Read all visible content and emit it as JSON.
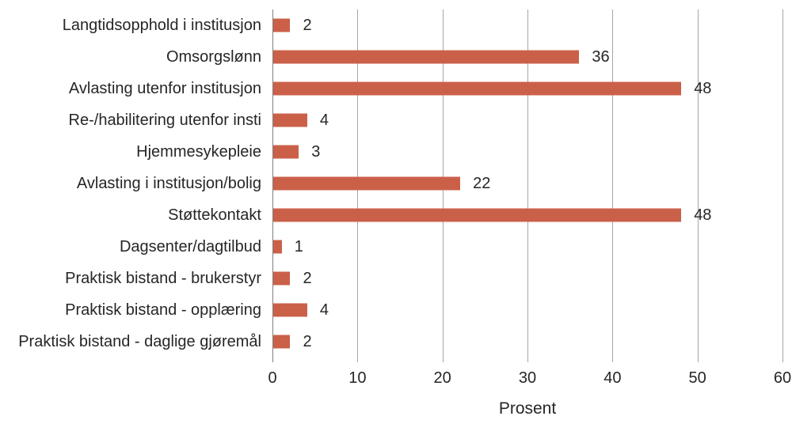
{
  "chart_data": {
    "type": "bar",
    "orientation": "horizontal",
    "title": "",
    "xlabel": "Prosent",
    "ylabel": "",
    "categories": [
      "Langtidsopphold i institusjon",
      "Omsorgslønn",
      "Avlasting utenfor institusjon",
      "Re-/habilitering utenfor insti",
      "Hjemmesykepleie",
      "Avlasting i institusjon/bolig",
      "Støttekontakt",
      "Dagsenter/dagtilbud",
      "Praktisk bistand - brukerstyr",
      "Praktisk bistand - opplæring",
      "Praktisk bistand - daglige gjøremål"
    ],
    "values": [
      2,
      36,
      48,
      4,
      3,
      22,
      48,
      1,
      2,
      4,
      2
    ],
    "data_labels_shown": true,
    "xlim": [
      0,
      60
    ],
    "xticks": [
      0,
      10,
      20,
      30,
      40,
      50,
      60
    ],
    "grid": true,
    "legend": false,
    "colors": {
      "bar": "#CB6049",
      "gridline": "#A6A6A6",
      "axis_line": "#808080",
      "text": "#262626",
      "background": "#FFFFFF"
    }
  }
}
